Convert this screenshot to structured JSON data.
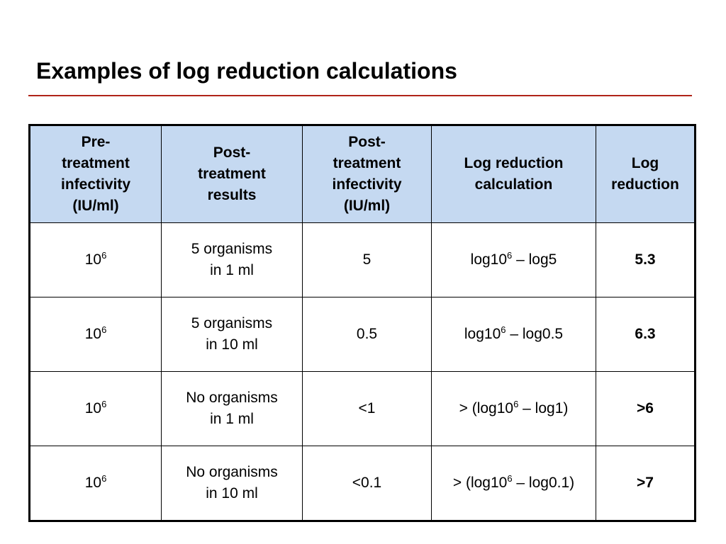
{
  "slide": {
    "title": "Examples of log reduction calculations",
    "accent_color": "#b02418",
    "header_fill": "#c5d9f1"
  },
  "table": {
    "headers": [
      [
        "Pre-",
        "treatment",
        "infectivity",
        "(IU/ml)"
      ],
      [
        "Post-",
        "treatment",
        "results"
      ],
      [
        "Post-",
        "treatment",
        "infectivity",
        "(IU/ml)"
      ],
      [
        "Log reduction",
        "calculation"
      ],
      [
        "Log",
        "reduction"
      ]
    ],
    "rows": [
      {
        "pre_base": "10",
        "pre_exp": "6",
        "results": [
          "5 organisms",
          "in 1 ml"
        ],
        "post_infectivity": "5",
        "calc_prefix": "log10",
        "calc_exp": "6",
        "calc_suffix": " – log5",
        "log_reduction": "5.3"
      },
      {
        "pre_base": "10",
        "pre_exp": "6",
        "results": [
          "5 organisms",
          "in 10 ml"
        ],
        "post_infectivity": "0.5",
        "calc_prefix": "log10",
        "calc_exp": "6",
        "calc_suffix": " – log0.5",
        "log_reduction": "6.3"
      },
      {
        "pre_base": "10",
        "pre_exp": "6",
        "results": [
          "No organisms",
          "in 1 ml"
        ],
        "post_infectivity": "<1",
        "calc_prefix": "> (log10",
        "calc_exp": "6",
        "calc_suffix": " – log1)",
        "log_reduction": ">6"
      },
      {
        "pre_base": "10",
        "pre_exp": "6",
        "results": [
          "No organisms",
          "in 10 ml"
        ],
        "post_infectivity": "<0.1",
        "calc_prefix": "> (log10",
        "calc_exp": "6",
        "calc_suffix": " – log0.1)",
        "log_reduction": ">7"
      }
    ]
  }
}
